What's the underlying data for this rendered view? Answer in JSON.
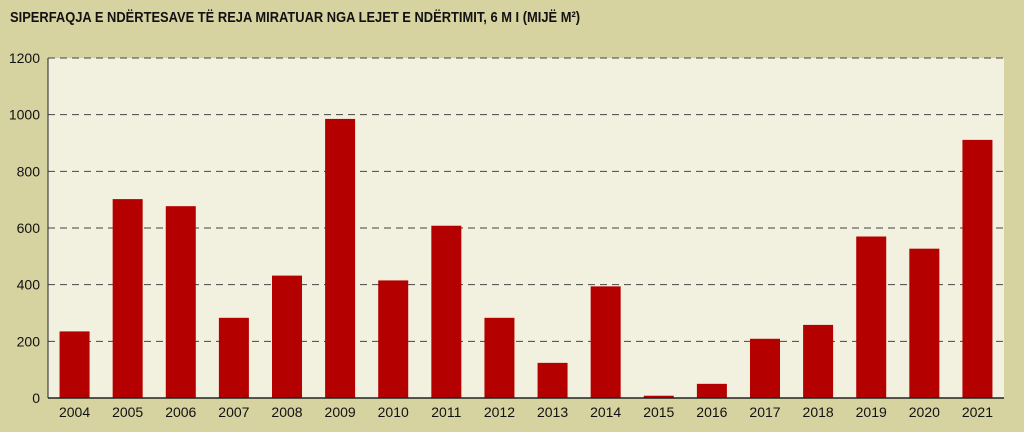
{
  "chart_data": {
    "type": "bar",
    "title": "SIPERFAQJA E NDËRTESAVE TË REJA MIRATUAR NGA LEJET E NDËRTIMIT, 6 M I (MIJË M²)",
    "xlabel": "",
    "ylabel": "",
    "categories": [
      "2004",
      "2005",
      "2006",
      "2007",
      "2008",
      "2009",
      "2010",
      "2011",
      "2012",
      "2013",
      "2014",
      "2015",
      "2016",
      "2017",
      "2018",
      "2019",
      "2020",
      "2021"
    ],
    "values": [
      235,
      702,
      677,
      283,
      432,
      985,
      415,
      608,
      283,
      124,
      394,
      8,
      50,
      209,
      258,
      570,
      527,
      911
    ],
    "ylim": [
      0,
      1200
    ],
    "yticks": [
      0,
      200,
      400,
      600,
      800,
      1000,
      1200
    ],
    "grid": true,
    "colors": {
      "bar": "#b50000",
      "plot_bg": "#f2f1e0",
      "page_bg": "#d6d3a0",
      "grid": "#444444"
    }
  }
}
